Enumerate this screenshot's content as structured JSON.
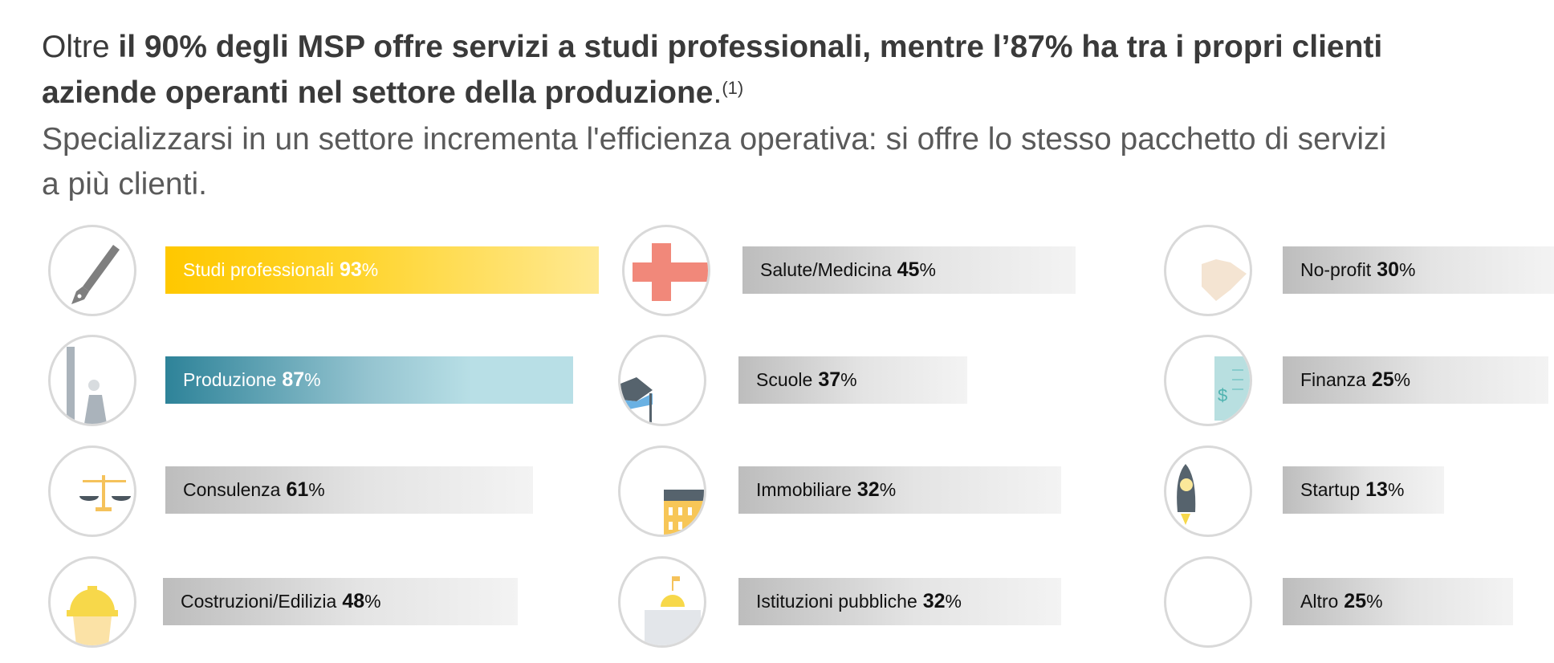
{
  "headline": {
    "prefix": "Oltre ",
    "emphasis": "il 90% degli MSP offre servizi a studi professionali, mentre l’87% ha tra i propri clienti aziende operanti nel settore della produzione",
    "suffix": ".",
    "footnote": "(1)"
  },
  "subheadline": "Specializzarsi in un settore incrementa l'efficienza operativa: si offre lo stesso pacchetto di servizi a più clienti.",
  "sectors": [
    {
      "label": "Studi professionali",
      "value": "93",
      "unit": "%",
      "icon": "pen-icon"
    },
    {
      "label": "Produzione",
      "value": "87",
      "unit": "%",
      "icon": "factory-icon"
    },
    {
      "label": "Consulenza",
      "value": "61",
      "unit": "%",
      "icon": "scales-icon"
    },
    {
      "label": "Costruzioni/Edilizia",
      "value": "48",
      "unit": "%",
      "icon": "hard-hat-icon"
    },
    {
      "label": "Salute/Medicina",
      "value": "45",
      "unit": "%",
      "icon": "medical-cross-icon"
    },
    {
      "label": "Scuole",
      "value": "37",
      "unit": "%",
      "icon": "graduation-cap-icon"
    },
    {
      "label": "Immobiliare",
      "value": "32",
      "unit": "%",
      "icon": "building-icon"
    },
    {
      "label": "Istituzioni pubbliche",
      "value": "32",
      "unit": "%",
      "icon": "capitol-icon"
    },
    {
      "label": "No-profit",
      "value": "30",
      "unit": "%",
      "icon": "handshake-icon"
    },
    {
      "label": "Finanza",
      "value": "25",
      "unit": "%",
      "icon": "invoice-dollar-icon"
    },
    {
      "label": "Startup",
      "value": "13",
      "unit": "%",
      "icon": "rocket-icon"
    },
    {
      "label": "Altro",
      "value": "25",
      "unit": "%",
      "icon": "empty-icon"
    }
  ],
  "colors": {
    "highlight1": "#ffc800",
    "highlight2": "#2e8399",
    "neutral": "#bdbdbd"
  }
}
